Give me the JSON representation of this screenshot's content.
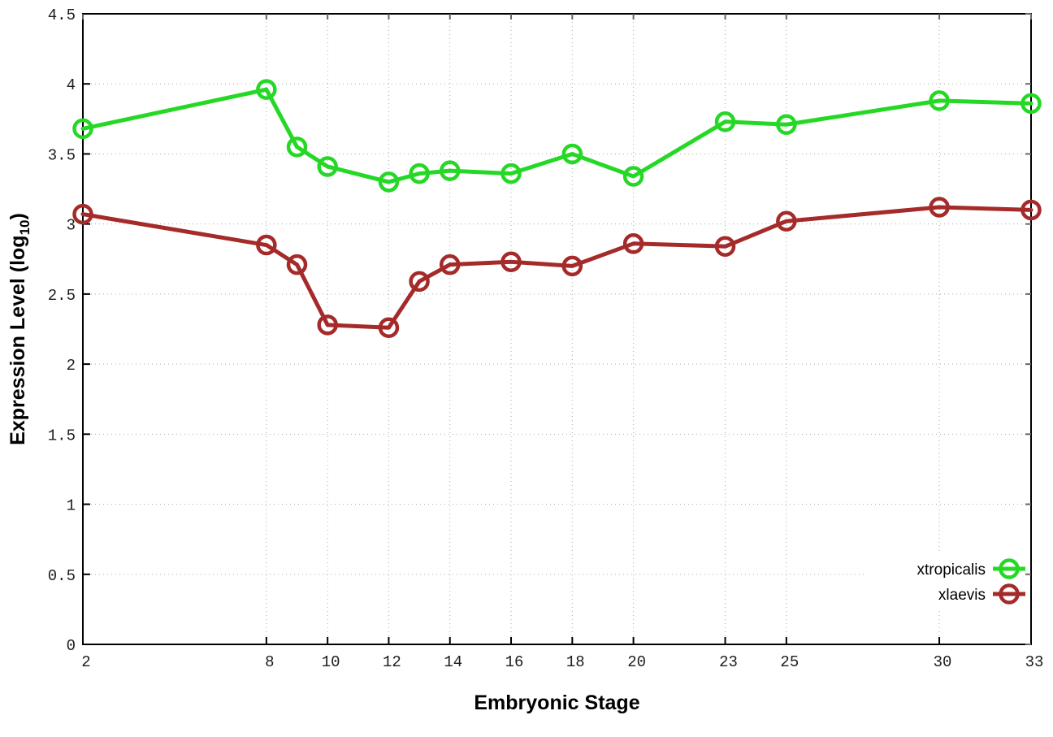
{
  "chart_data": {
    "type": "line",
    "title": "",
    "xlabel": "Embryonic Stage",
    "ylabel": {
      "text": "Expression Level (log",
      "subscript": "10",
      "suffix": ")"
    },
    "xlim": [
      2,
      33
    ],
    "ylim": [
      0,
      4.5
    ],
    "xticks": [
      2,
      8,
      10,
      12,
      14,
      16,
      18,
      20,
      23,
      25,
      30,
      33
    ],
    "yticks": [
      0,
      0.5,
      1,
      1.5,
      2,
      2.5,
      3,
      3.5,
      4,
      4.5
    ],
    "grid": true,
    "grid_style": "dotted",
    "legend_position": "bottom-right",
    "marker": "open-circle",
    "x": [
      2,
      8,
      9,
      10,
      12,
      13,
      14,
      16,
      18,
      20,
      23,
      25,
      30,
      33
    ],
    "series": [
      {
        "name": "xtropicalis",
        "color": "#25d825",
        "values": [
          3.68,
          3.96,
          3.55,
          3.41,
          3.3,
          3.36,
          3.38,
          3.36,
          3.5,
          3.34,
          3.73,
          3.71,
          3.88,
          3.86
        ]
      },
      {
        "name": "xlaevis",
        "color": "#a52a2a",
        "values": [
          3.07,
          2.85,
          2.71,
          2.28,
          2.26,
          2.59,
          2.71,
          2.73,
          2.7,
          2.86,
          2.84,
          3.02,
          3.12,
          3.1
        ]
      }
    ]
  },
  "colors": {
    "background": "#ffffff",
    "plot_border": "#000000",
    "grid": "#aaaaaa",
    "mirror_tick": "#666666",
    "tick_label": "#1c1c1c"
  }
}
